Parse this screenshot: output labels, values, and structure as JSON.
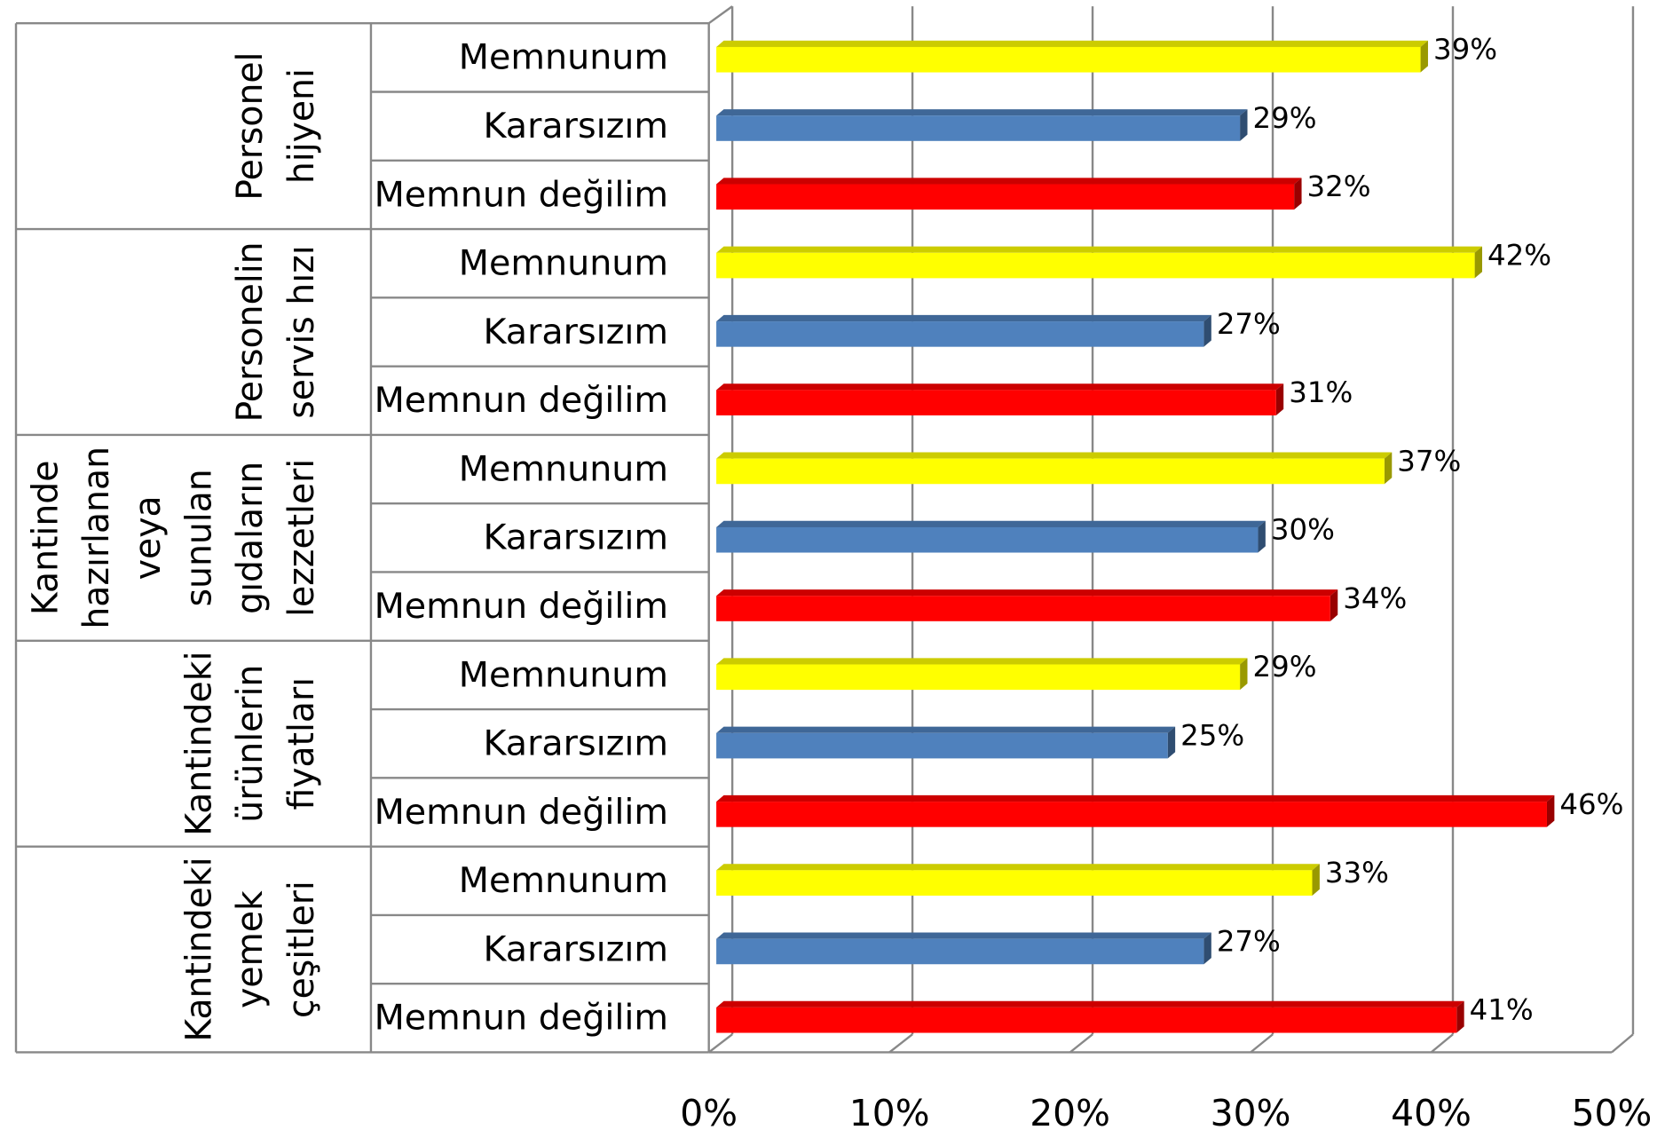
{
  "chart_data": {
    "type": "bar",
    "orientation": "horizontal",
    "colors": [
      "#ffff00",
      "#4f81bd",
      "#ff0000"
    ],
    "groups": [
      {
        "label": [
          "Personel",
          "hijyeni"
        ],
        "categories": [
          "Memnunum",
          "Kararsızım",
          "Memnun değilim"
        ],
        "values": [
          39,
          29,
          32
        ],
        "value_labels": [
          "39%",
          "29%",
          "32%"
        ]
      },
      {
        "label": [
          "Personelin",
          "servis hızı"
        ],
        "categories": [
          "Memnunum",
          "Kararsızım",
          "Memnun değilim"
        ],
        "values": [
          42,
          27,
          31
        ],
        "value_labels": [
          "42%",
          "27%",
          "31%"
        ]
      },
      {
        "label": [
          "Kantinde",
          "hazırlanan",
          "veya",
          "sunulan",
          "gıdaların",
          "lezzetleri"
        ],
        "categories": [
          "Memnunum",
          "Kararsızım",
          "Memnun değilim"
        ],
        "values": [
          37,
          30,
          34
        ],
        "value_labels": [
          "37%",
          "30%",
          "34%"
        ]
      },
      {
        "label": [
          "Kantindeki",
          "ürünlerin",
          "fiyatları"
        ],
        "categories": [
          "Memnunum",
          "Kararsızım",
          "Memnun değilim"
        ],
        "values": [
          29,
          25,
          46
        ],
        "value_labels": [
          "29%",
          "25%",
          "46%"
        ]
      },
      {
        "label": [
          "Kantindeki",
          "yemek",
          "çeşitleri"
        ],
        "categories": [
          "Memnunum",
          "Kararsızım",
          "Memnun değilim"
        ],
        "values": [
          33,
          27,
          41
        ],
        "value_labels": [
          "33%",
          "27%",
          "41%"
        ]
      }
    ],
    "xlim": [
      0,
      50
    ],
    "xticks": [
      {
        "value": 0,
        "label": "0%"
      },
      {
        "value": 10,
        "label": "10%"
      },
      {
        "value": 20,
        "label": "20%"
      },
      {
        "value": 30,
        "label": "30%"
      },
      {
        "value": 40,
        "label": "40%"
      },
      {
        "value": 50,
        "label": "50%"
      }
    ],
    "grid": true
  }
}
